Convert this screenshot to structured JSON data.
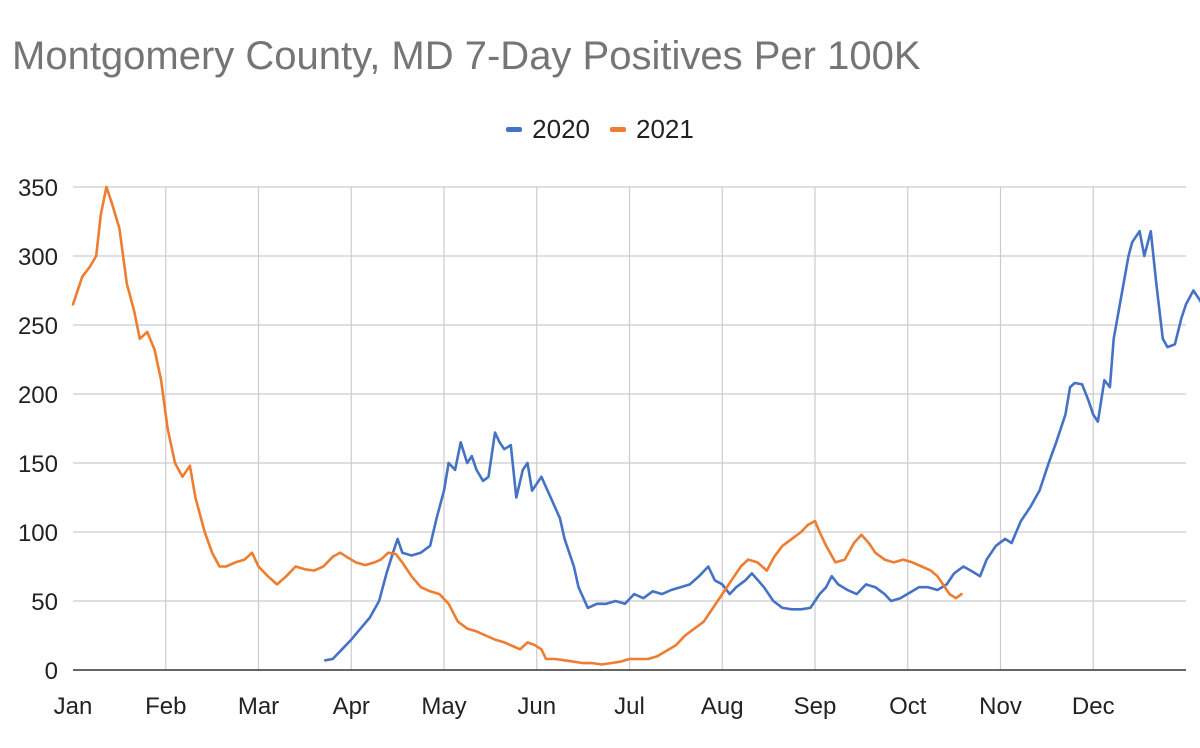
{
  "chart_data": {
    "type": "line",
    "title": "Montgomery County, MD 7-Day Positives Per 100K",
    "xlabel": "",
    "ylabel": "",
    "ylim": [
      0,
      350
    ],
    "yticks": [
      0,
      50,
      100,
      150,
      200,
      250,
      300,
      350
    ],
    "xlim": [
      0,
      12
    ],
    "categories": [
      "Jan",
      "Feb",
      "Mar",
      "Apr",
      "May",
      "Jun",
      "Jul",
      "Aug",
      "Sep",
      "Oct",
      "Nov",
      "Dec"
    ],
    "grid": true,
    "legend_position": "top-center",
    "series": [
      {
        "name": "2020",
        "color": "#4472c4",
        "points": [
          [
            2.72,
            7
          ],
          [
            2.8,
            8
          ],
          [
            2.9,
            15
          ],
          [
            3.0,
            22
          ],
          [
            3.1,
            30
          ],
          [
            3.2,
            38
          ],
          [
            3.3,
            50
          ],
          [
            3.38,
            70
          ],
          [
            3.45,
            85
          ],
          [
            3.5,
            95
          ],
          [
            3.55,
            85
          ],
          [
            3.65,
            83
          ],
          [
            3.75,
            85
          ],
          [
            3.85,
            90
          ],
          [
            3.92,
            110
          ],
          [
            4.0,
            130
          ],
          [
            4.05,
            150
          ],
          [
            4.12,
            145
          ],
          [
            4.18,
            165
          ],
          [
            4.25,
            150
          ],
          [
            4.3,
            155
          ],
          [
            4.35,
            145
          ],
          [
            4.42,
            137
          ],
          [
            4.48,
            140
          ],
          [
            4.55,
            172
          ],
          [
            4.6,
            165
          ],
          [
            4.65,
            160
          ],
          [
            4.72,
            163
          ],
          [
            4.78,
            125
          ],
          [
            4.85,
            145
          ],
          [
            4.9,
            150
          ],
          [
            4.95,
            130
          ],
          [
            5.05,
            140
          ],
          [
            5.15,
            125
          ],
          [
            5.25,
            110
          ],
          [
            5.3,
            95
          ],
          [
            5.4,
            75
          ],
          [
            5.45,
            60
          ],
          [
            5.55,
            45
          ],
          [
            5.65,
            48
          ],
          [
            5.75,
            48
          ],
          [
            5.85,
            50
          ],
          [
            5.95,
            48
          ],
          [
            6.05,
            55
          ],
          [
            6.15,
            52
          ],
          [
            6.25,
            57
          ],
          [
            6.35,
            55
          ],
          [
            6.45,
            58
          ],
          [
            6.55,
            60
          ],
          [
            6.65,
            62
          ],
          [
            6.75,
            68
          ],
          [
            6.85,
            75
          ],
          [
            6.92,
            65
          ],
          [
            7.0,
            62
          ],
          [
            7.08,
            55
          ],
          [
            7.15,
            60
          ],
          [
            7.25,
            65
          ],
          [
            7.32,
            70
          ],
          [
            7.45,
            60
          ],
          [
            7.55,
            50
          ],
          [
            7.65,
            45
          ],
          [
            7.75,
            44
          ],
          [
            7.85,
            44
          ],
          [
            7.95,
            45
          ],
          [
            8.05,
            55
          ],
          [
            8.12,
            60
          ],
          [
            8.18,
            68
          ],
          [
            8.25,
            62
          ],
          [
            8.35,
            58
          ],
          [
            8.45,
            55
          ],
          [
            8.55,
            62
          ],
          [
            8.65,
            60
          ],
          [
            8.75,
            55
          ],
          [
            8.82,
            50
          ],
          [
            8.92,
            52
          ],
          [
            9.02,
            56
          ],
          [
            9.12,
            60
          ],
          [
            9.22,
            60
          ],
          [
            9.32,
            58
          ],
          [
            9.42,
            62
          ],
          [
            9.5,
            70
          ],
          [
            9.6,
            75
          ],
          [
            9.68,
            72
          ],
          [
            9.78,
            68
          ],
          [
            9.85,
            80
          ],
          [
            9.95,
            90
          ],
          [
            10.05,
            95
          ],
          [
            10.12,
            92
          ],
          [
            10.22,
            108
          ],
          [
            10.32,
            118
          ],
          [
            10.42,
            130
          ],
          [
            10.52,
            150
          ],
          [
            10.6,
            165
          ],
          [
            10.7,
            185
          ],
          [
            10.75,
            205
          ],
          [
            10.8,
            208
          ],
          [
            10.88,
            207
          ],
          [
            10.95,
            195
          ],
          [
            11.0,
            185
          ],
          [
            11.05,
            180
          ],
          [
            11.12,
            210
          ],
          [
            11.18,
            205
          ],
          [
            11.22,
            240
          ],
          [
            11.3,
            270
          ],
          [
            11.38,
            300
          ],
          [
            11.42,
            310
          ],
          [
            11.5,
            318
          ],
          [
            11.55,
            300
          ],
          [
            11.62,
            318
          ],
          [
            11.68,
            280
          ],
          [
            11.75,
            240
          ],
          [
            11.8,
            234
          ],
          [
            11.88,
            236
          ],
          [
            11.95,
            255
          ],
          [
            12.0,
            265
          ],
          [
            12.08,
            275
          ],
          [
            12.15,
            268
          ],
          [
            12.2,
            262
          ]
        ]
      },
      {
        "name": "2021",
        "color": "#ed7d31",
        "points": [
          [
            0.0,
            265
          ],
          [
            0.1,
            285
          ],
          [
            0.18,
            292
          ],
          [
            0.25,
            300
          ],
          [
            0.3,
            330
          ],
          [
            0.36,
            350
          ],
          [
            0.42,
            338
          ],
          [
            0.5,
            320
          ],
          [
            0.58,
            280
          ],
          [
            0.66,
            260
          ],
          [
            0.72,
            240
          ],
          [
            0.8,
            245
          ],
          [
            0.88,
            232
          ],
          [
            0.95,
            210
          ],
          [
            1.02,
            175
          ],
          [
            1.1,
            150
          ],
          [
            1.18,
            140
          ],
          [
            1.26,
            148
          ],
          [
            1.32,
            125
          ],
          [
            1.42,
            100
          ],
          [
            1.5,
            85
          ],
          [
            1.58,
            75
          ],
          [
            1.65,
            75
          ],
          [
            1.75,
            78
          ],
          [
            1.85,
            80
          ],
          [
            1.93,
            85
          ],
          [
            2.0,
            75
          ],
          [
            2.1,
            68
          ],
          [
            2.2,
            62
          ],
          [
            2.3,
            68
          ],
          [
            2.4,
            75
          ],
          [
            2.5,
            73
          ],
          [
            2.6,
            72
          ],
          [
            2.7,
            75
          ],
          [
            2.8,
            82
          ],
          [
            2.88,
            85
          ],
          [
            2.95,
            82
          ],
          [
            3.05,
            78
          ],
          [
            3.15,
            76
          ],
          [
            3.25,
            78
          ],
          [
            3.32,
            80
          ],
          [
            3.4,
            85
          ],
          [
            3.48,
            84
          ],
          [
            3.55,
            78
          ],
          [
            3.65,
            68
          ],
          [
            3.75,
            60
          ],
          [
            3.85,
            57
          ],
          [
            3.95,
            55
          ],
          [
            4.05,
            48
          ],
          [
            4.15,
            35
          ],
          [
            4.25,
            30
          ],
          [
            4.35,
            28
          ],
          [
            4.45,
            25
          ],
          [
            4.55,
            22
          ],
          [
            4.65,
            20
          ],
          [
            4.75,
            17
          ],
          [
            4.82,
            15
          ],
          [
            4.9,
            20
          ],
          [
            4.98,
            18
          ],
          [
            5.05,
            15
          ],
          [
            5.1,
            8
          ],
          [
            5.2,
            8
          ],
          [
            5.3,
            7
          ],
          [
            5.4,
            6
          ],
          [
            5.5,
            5
          ],
          [
            5.6,
            5
          ],
          [
            5.7,
            4
          ],
          [
            5.8,
            5
          ],
          [
            5.9,
            6
          ],
          [
            6.0,
            8
          ],
          [
            6.1,
            8
          ],
          [
            6.2,
            8
          ],
          [
            6.3,
            10
          ],
          [
            6.4,
            14
          ],
          [
            6.5,
            18
          ],
          [
            6.6,
            25
          ],
          [
            6.7,
            30
          ],
          [
            6.8,
            35
          ],
          [
            6.9,
            45
          ],
          [
            7.0,
            55
          ],
          [
            7.1,
            65
          ],
          [
            7.2,
            75
          ],
          [
            7.28,
            80
          ],
          [
            7.38,
            78
          ],
          [
            7.48,
            72
          ],
          [
            7.56,
            82
          ],
          [
            7.65,
            90
          ],
          [
            7.75,
            95
          ],
          [
            7.85,
            100
          ],
          [
            7.92,
            105
          ],
          [
            8.0,
            108
          ],
          [
            8.05,
            100
          ],
          [
            8.12,
            90
          ],
          [
            8.22,
            78
          ],
          [
            8.32,
            80
          ],
          [
            8.42,
            92
          ],
          [
            8.5,
            98
          ],
          [
            8.58,
            92
          ],
          [
            8.65,
            85
          ],
          [
            8.75,
            80
          ],
          [
            8.85,
            78
          ],
          [
            8.95,
            80
          ],
          [
            9.05,
            78
          ],
          [
            9.15,
            75
          ],
          [
            9.25,
            72
          ],
          [
            9.32,
            68
          ],
          [
            9.38,
            62
          ],
          [
            9.45,
            55
          ],
          [
            9.52,
            52
          ],
          [
            9.58,
            55
          ]
        ]
      }
    ]
  }
}
